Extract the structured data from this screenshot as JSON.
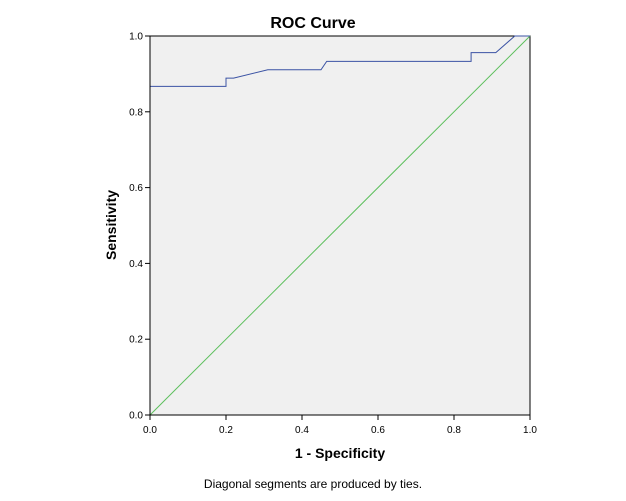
{
  "chart_data": {
    "type": "line",
    "title": "ROC Curve",
    "xlabel": "1 - Specificity",
    "ylabel": "Sensitivity",
    "xlim": [
      0.0,
      1.0
    ],
    "ylim": [
      0.0,
      1.0
    ],
    "x_ticks": [
      "0.0",
      "0.2",
      "0.4",
      "0.6",
      "0.8",
      "1.0"
    ],
    "y_ticks": [
      "0.0",
      "0.2",
      "0.4",
      "0.6",
      "0.8",
      "1.0"
    ],
    "grid": false,
    "legend": "none",
    "footnote": "Diagonal segments are produced by ties.",
    "plot_background": "#f0f0f0",
    "series": [
      {
        "color": "#3b53a4",
        "x": [
          0.0,
          0.2,
          0.2,
          0.22,
          0.31,
          0.45,
          0.465,
          0.845,
          0.845,
          0.91,
          0.96,
          1.0
        ],
        "y": [
          0.867,
          0.867,
          0.889,
          0.889,
          0.911,
          0.911,
          0.933,
          0.933,
          0.956,
          0.956,
          1.0,
          1.0
        ]
      },
      {
        "color": "#5cbf5c",
        "x": [
          0.0,
          1.0
        ],
        "y": [
          0.0,
          1.0
        ]
      }
    ]
  }
}
